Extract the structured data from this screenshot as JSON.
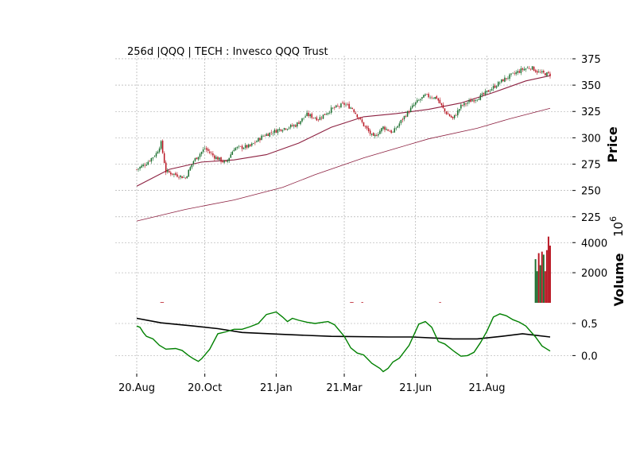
{
  "chart_data": {
    "title": "256d |QQQ | TECH : Invesco QQQ Trust",
    "x_ticks": [
      "20.Aug",
      "20.Oct",
      "21.Jan",
      "21.Mar",
      "21.Jun",
      "21.Aug"
    ],
    "colors": {
      "up": "#1a6e2e",
      "down": "#b81421",
      "ma": "#8c2040",
      "osc": "#008000",
      "signal": "#000000",
      "grid": "#a0a0a0"
    },
    "panels": [
      {
        "type": "candlestick",
        "ylabel": "Price",
        "ylim": [
          212,
          378
        ],
        "yticks": [
          225,
          250,
          275,
          300,
          325,
          350,
          375
        ],
        "ohlc_anchors": [
          [
            0,
            270
          ],
          [
            6,
            276
          ],
          [
            12,
            285
          ],
          [
            15,
            295
          ],
          [
            18,
            268
          ],
          [
            24,
            265
          ],
          [
            30,
            262
          ],
          [
            35,
            278
          ],
          [
            42,
            290
          ],
          [
            48,
            282
          ],
          [
            55,
            276
          ],
          [
            60,
            290
          ],
          [
            70,
            292
          ],
          [
            78,
            302
          ],
          [
            88,
            308
          ],
          [
            98,
            312
          ],
          [
            105,
            322
          ],
          [
            112,
            318
          ],
          [
            120,
            327
          ],
          [
            128,
            332
          ],
          [
            133,
            328
          ],
          [
            140,
            312
          ],
          [
            146,
            300
          ],
          [
            152,
            310
          ],
          [
            158,
            305
          ],
          [
            165,
            320
          ],
          [
            172,
            333
          ],
          [
            178,
            340
          ],
          [
            185,
            338
          ],
          [
            190,
            325
          ],
          [
            195,
            318
          ],
          [
            200,
            330
          ],
          [
            206,
            335
          ],
          [
            213,
            340
          ],
          [
            220,
            348
          ],
          [
            226,
            355
          ],
          [
            232,
            360
          ],
          [
            238,
            365
          ],
          [
            243,
            367
          ],
          [
            248,
            362
          ],
          [
            255,
            360
          ]
        ],
        "ma_short": [
          [
            0,
            254
          ],
          [
            20,
            270
          ],
          [
            40,
            277
          ],
          [
            60,
            279
          ],
          [
            80,
            284
          ],
          [
            100,
            295
          ],
          [
            120,
            310
          ],
          [
            140,
            320
          ],
          [
            160,
            323
          ],
          [
            180,
            327
          ],
          [
            200,
            333
          ],
          [
            220,
            343
          ],
          [
            240,
            354
          ],
          [
            255,
            359
          ]
        ],
        "ma_long": [
          [
            0,
            221
          ],
          [
            30,
            232
          ],
          [
            60,
            241
          ],
          [
            90,
            253
          ],
          [
            110,
            265
          ],
          [
            140,
            281
          ],
          [
            160,
            290
          ],
          [
            180,
            299
          ],
          [
            210,
            309
          ],
          [
            230,
            318
          ],
          [
            255,
            328
          ]
        ]
      },
      {
        "type": "volume",
        "ylabel": "Volume",
        "unit_label": "10",
        "unit_exp": "6",
        "ylim": [
          0,
          4700
        ],
        "yticks": [
          2000,
          4000
        ],
        "bars": [
          {
            "x": 246,
            "value": 2900,
            "dir": "up"
          },
          {
            "x": 247,
            "value": 2100,
            "dir": "up"
          },
          {
            "x": 248,
            "value": 3300,
            "dir": "down"
          },
          {
            "x": 249,
            "value": 2500,
            "dir": "up"
          },
          {
            "x": 250,
            "value": 3400,
            "dir": "down"
          },
          {
            "x": 251,
            "value": 3200,
            "dir": "up"
          },
          {
            "x": 252,
            "value": 2100,
            "dir": "down"
          },
          {
            "x": 253,
            "value": 3500,
            "dir": "down"
          },
          {
            "x": 254,
            "value": 4400,
            "dir": "down"
          },
          {
            "x": 255,
            "value": 3800,
            "dir": "down"
          }
        ],
        "small_ticks": [
          {
            "x": 15,
            "value": 40,
            "dir": "down"
          },
          {
            "x": 16,
            "value": 40,
            "dir": "down"
          },
          {
            "x": 132,
            "value": 40,
            "dir": "down"
          },
          {
            "x": 133,
            "value": 40,
            "dir": "down"
          },
          {
            "x": 139,
            "value": 40,
            "dir": "down"
          },
          {
            "x": 187,
            "value": 40,
            "dir": "down"
          }
        ]
      },
      {
        "type": "oscillator",
        "ylim": [
          -0.28,
          0.76
        ],
        "yticks": [
          0.0,
          0.5
        ],
        "ytick_labels": [
          "0.0",
          "0.5"
        ],
        "osc": [
          [
            0,
            0.46
          ],
          [
            2,
            0.44
          ],
          [
            4,
            0.36
          ],
          [
            6,
            0.3
          ],
          [
            10,
            0.26
          ],
          [
            14,
            0.16
          ],
          [
            18,
            0.1
          ],
          [
            24,
            0.11
          ],
          [
            28,
            0.08
          ],
          [
            32,
            0.0
          ],
          [
            35,
            -0.05
          ],
          [
            38,
            -0.09
          ],
          [
            40,
            -0.05
          ],
          [
            45,
            0.1
          ],
          [
            50,
            0.34
          ],
          [
            55,
            0.37
          ],
          [
            60,
            0.41
          ],
          [
            65,
            0.41
          ],
          [
            70,
            0.45
          ],
          [
            75,
            0.5
          ],
          [
            80,
            0.64
          ],
          [
            86,
            0.68
          ],
          [
            90,
            0.6
          ],
          [
            93,
            0.53
          ],
          [
            96,
            0.58
          ],
          [
            100,
            0.55
          ],
          [
            105,
            0.52
          ],
          [
            110,
            0.5
          ],
          [
            115,
            0.52
          ],
          [
            118,
            0.53
          ],
          [
            122,
            0.48
          ],
          [
            128,
            0.3
          ],
          [
            132,
            0.12
          ],
          [
            136,
            0.04
          ],
          [
            140,
            0.01
          ],
          [
            145,
            -0.12
          ],
          [
            150,
            -0.2
          ],
          [
            152,
            -0.25
          ],
          [
            155,
            -0.2
          ],
          [
            158,
            -0.1
          ],
          [
            162,
            -0.04
          ],
          [
            168,
            0.16
          ],
          [
            174,
            0.49
          ],
          [
            178,
            0.53
          ],
          [
            182,
            0.44
          ],
          [
            186,
            0.22
          ],
          [
            190,
            0.18
          ],
          [
            196,
            0.06
          ],
          [
            200,
            -0.01
          ],
          [
            204,
            0.0
          ],
          [
            208,
            0.05
          ],
          [
            212,
            0.2
          ],
          [
            216,
            0.38
          ],
          [
            220,
            0.6
          ],
          [
            224,
            0.65
          ],
          [
            228,
            0.62
          ],
          [
            232,
            0.56
          ],
          [
            236,
            0.52
          ],
          [
            240,
            0.46
          ],
          [
            246,
            0.29
          ],
          [
            250,
            0.15
          ],
          [
            255,
            0.07
          ]
        ],
        "signal": [
          [
            0,
            0.58
          ],
          [
            15,
            0.51
          ],
          [
            35,
            0.46
          ],
          [
            50,
            0.42
          ],
          [
            65,
            0.36
          ],
          [
            90,
            0.33
          ],
          [
            120,
            0.3
          ],
          [
            155,
            0.29
          ],
          [
            170,
            0.29
          ],
          [
            195,
            0.26
          ],
          [
            210,
            0.26
          ],
          [
            225,
            0.3
          ],
          [
            238,
            0.34
          ],
          [
            255,
            0.29
          ]
        ]
      }
    ]
  }
}
